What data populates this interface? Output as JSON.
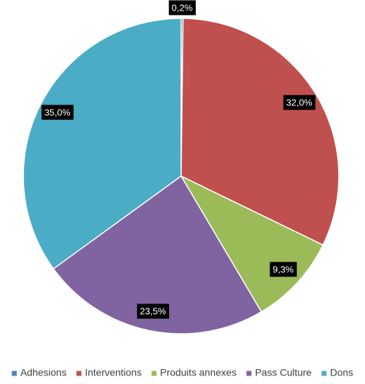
{
  "chart_data": {
    "type": "pie",
    "categories": [
      "Adhesions",
      "Interventions",
      "Produits annexes",
      "Pass Culture",
      "Dons"
    ],
    "values": [
      0.2,
      32.0,
      9.3,
      23.5,
      35.0
    ],
    "value_labels": [
      "0,2%",
      "32,0%",
      "9,3%",
      "23,5%",
      "35,0%"
    ],
    "colors": [
      "#4f81bd",
      "#c0504d",
      "#9bbb59",
      "#8064a2",
      "#4bacc6"
    ],
    "legend": "bottom"
  }
}
